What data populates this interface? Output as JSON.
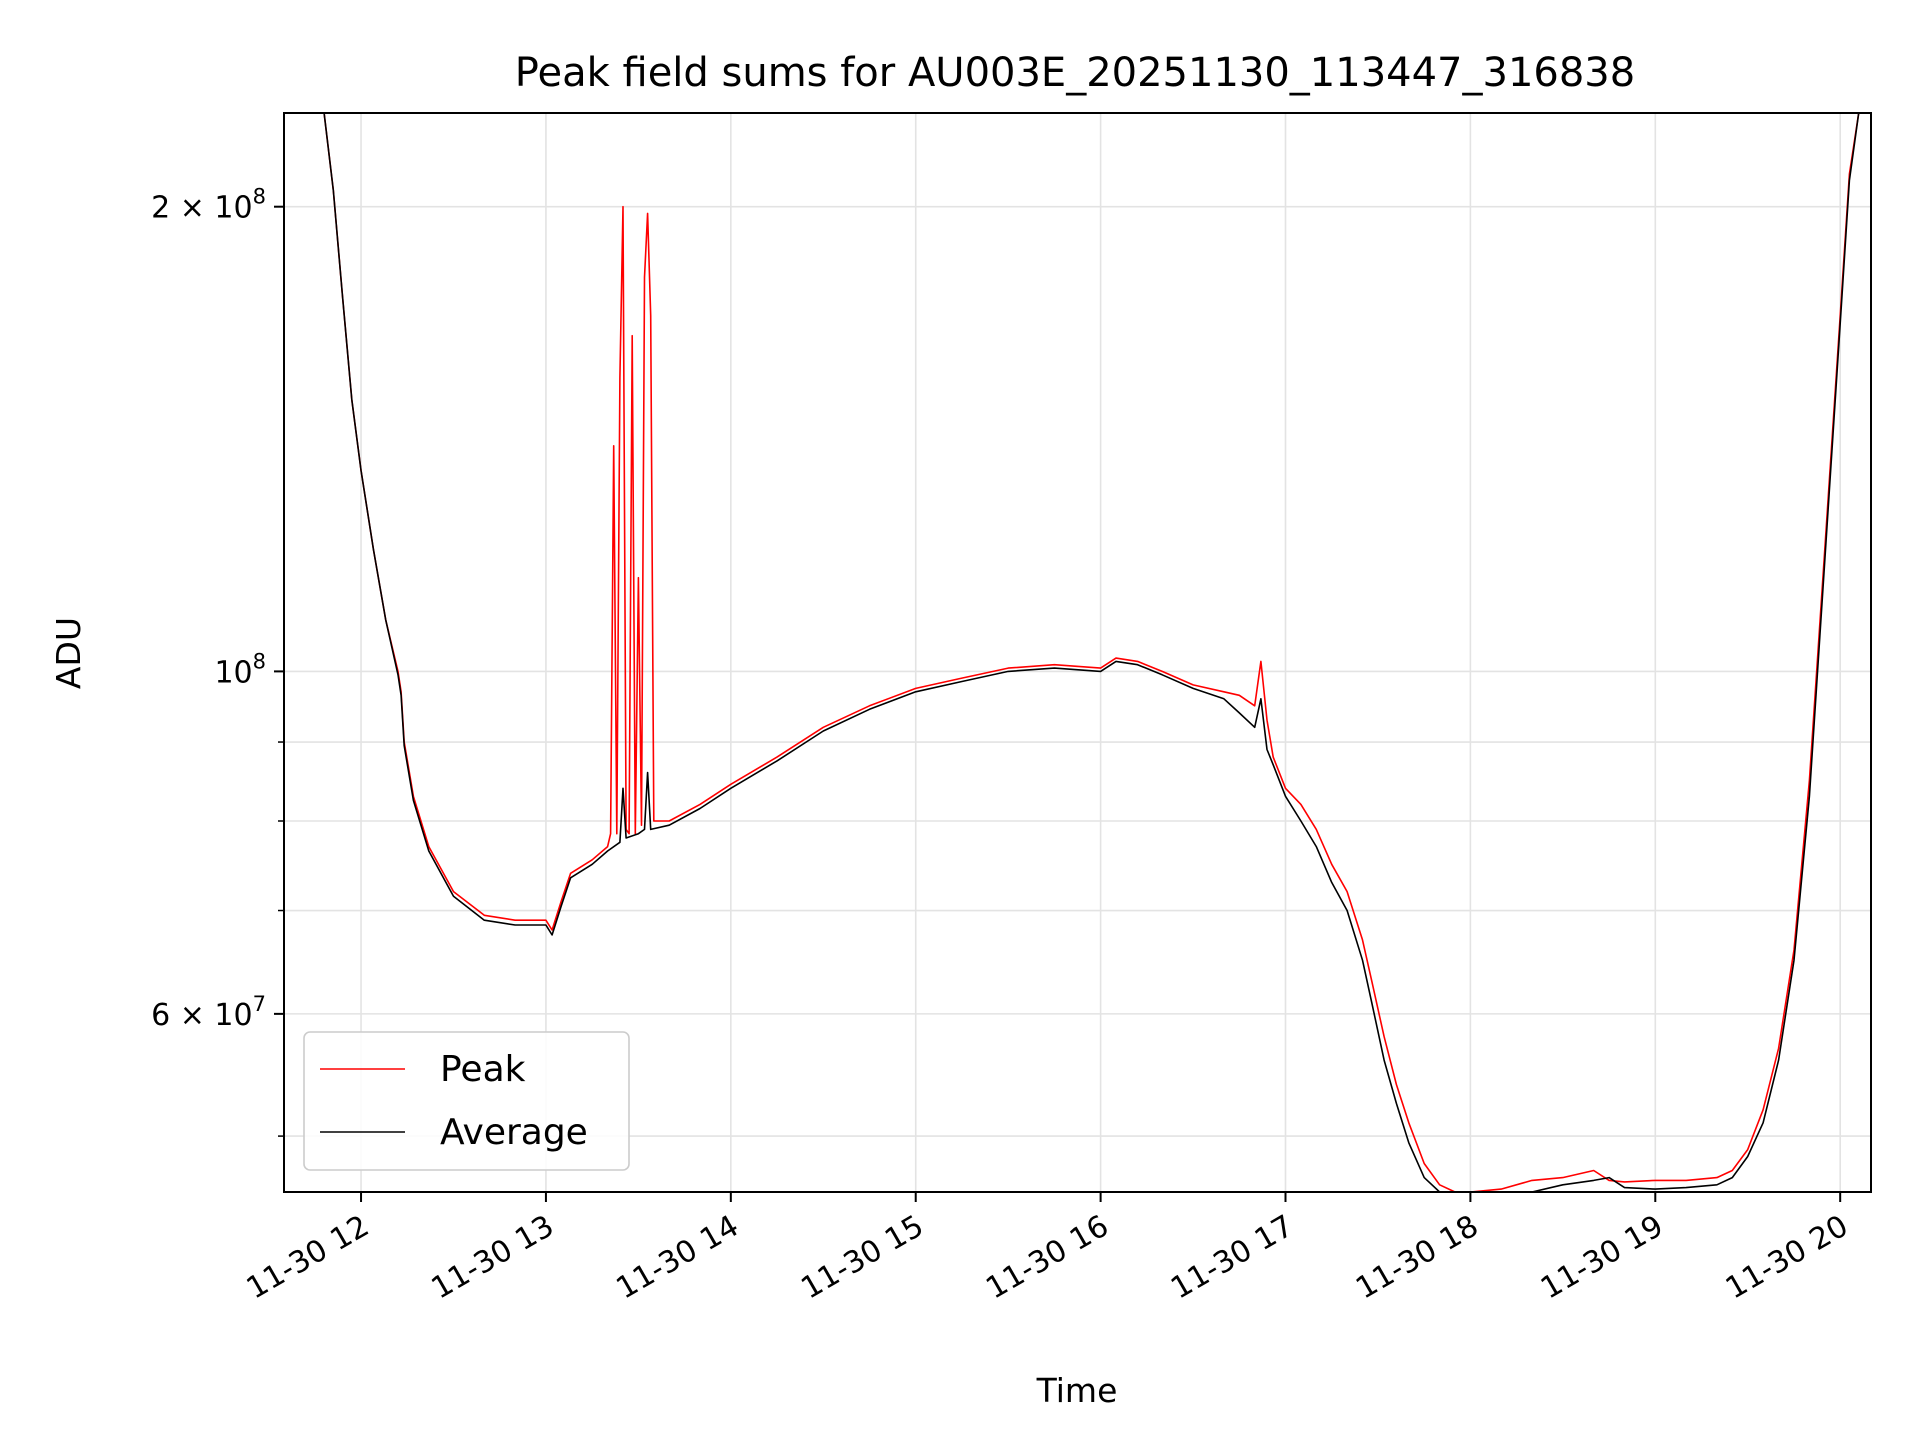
{
  "chart_data": {
    "type": "line",
    "title": "Peak field sums for AU003E_20251130_113447_316838",
    "xlabel": "Time",
    "ylabel": "ADU",
    "y_scale": "log",
    "grid": true,
    "legend_position": "lower-left",
    "x_range": [
      "2025-11-30 11:35",
      "2025-11-30 20:10"
    ],
    "y_range": [
      46000000,
      230000000
    ],
    "x_ticks": [
      {
        "t": "2025-11-30 12:00",
        "label": "11-30 12"
      },
      {
        "t": "2025-11-30 13:00",
        "label": "11-30 13"
      },
      {
        "t": "2025-11-30 14:00",
        "label": "11-30 14"
      },
      {
        "t": "2025-11-30 15:00",
        "label": "11-30 15"
      },
      {
        "t": "2025-11-30 16:00",
        "label": "11-30 16"
      },
      {
        "t": "2025-11-30 17:00",
        "label": "11-30 17"
      },
      {
        "t": "2025-11-30 18:00",
        "label": "11-30 18"
      },
      {
        "t": "2025-11-30 19:00",
        "label": "11-30 19"
      },
      {
        "t": "2025-11-30 20:00",
        "label": "11-30 20"
      }
    ],
    "y_major_ticks": [
      {
        "value": 60000000,
        "mant": "6",
        "exp": "7"
      },
      {
        "value": 100000000,
        "mant": "",
        "exp": "8"
      },
      {
        "value": 200000000,
        "mant": "2",
        "exp": "8"
      }
    ],
    "y_minor_gridlines": [
      50000000,
      70000000,
      80000000,
      90000000
    ],
    "series": [
      {
        "name": "Peak",
        "color": "#ff0000",
        "x": [
          "2025-11-30 11:42",
          "2025-11-30 11:48",
          "2025-11-30 11:51",
          "2025-11-30 11:54",
          "2025-11-30 11:57",
          "2025-11-30 12:00",
          "2025-11-30 12:04",
          "2025-11-30 12:08",
          "2025-11-30 12:12",
          "2025-11-30 12:13",
          "2025-11-30 12:14",
          "2025-11-30 12:17",
          "2025-11-30 12:22",
          "2025-11-30 12:30",
          "2025-11-30 12:40",
          "2025-11-30 12:50",
          "2025-11-30 13:00",
          "2025-11-30 13:02",
          "2025-11-30 13:05",
          "2025-11-30 13:08",
          "2025-11-30 13:15",
          "2025-11-30 13:20",
          "2025-11-30 13:21",
          "2025-11-30 13:22",
          "2025-11-30 13:23",
          "2025-11-30 13:24",
          "2025-11-30 13:25",
          "2025-11-30 13:26",
          "2025-11-30 13:27",
          "2025-11-30 13:28",
          "2025-11-30 13:29",
          "2025-11-30 13:30",
          "2025-11-30 13:31",
          "2025-11-30 13:32",
          "2025-11-30 13:33",
          "2025-11-30 13:34",
          "2025-11-30 13:35",
          "2025-11-30 13:40",
          "2025-11-30 13:50",
          "2025-11-30 14:00",
          "2025-11-30 14:15",
          "2025-11-30 14:30",
          "2025-11-30 14:45",
          "2025-11-30 15:00",
          "2025-11-30 15:15",
          "2025-11-30 15:30",
          "2025-11-30 15:45",
          "2025-11-30 16:00",
          "2025-11-30 16:05",
          "2025-11-30 16:12",
          "2025-11-30 16:20",
          "2025-11-30 16:30",
          "2025-11-30 16:40",
          "2025-11-30 16:45",
          "2025-11-30 16:50",
          "2025-11-30 16:52",
          "2025-11-30 16:54",
          "2025-11-30 16:56",
          "2025-11-30 17:00",
          "2025-11-30 17:05",
          "2025-11-30 17:10",
          "2025-11-30 17:15",
          "2025-11-30 17:20",
          "2025-11-30 17:25",
          "2025-11-30 17:28",
          "2025-11-30 17:32",
          "2025-11-30 17:36",
          "2025-11-30 17:40",
          "2025-11-30 17:45",
          "2025-11-30 17:50",
          "2025-11-30 17:55",
          "2025-11-30 18:00",
          "2025-11-30 18:10",
          "2025-11-30 18:20",
          "2025-11-30 18:30",
          "2025-11-30 18:40",
          "2025-11-30 18:45",
          "2025-11-30 18:50",
          "2025-11-30 19:00",
          "2025-11-30 19:10",
          "2025-11-30 19:20",
          "2025-11-30 19:25",
          "2025-11-30 19:30",
          "2025-11-30 19:35",
          "2025-11-30 19:40",
          "2025-11-30 19:45",
          "2025-11-30 19:50",
          "2025-11-30 19:55",
          "2025-11-30 20:00",
          "2025-11-30 20:03",
          "2025-11-30 20:06",
          "2025-11-30 20:10"
        ],
        "y": [
          230000000,
          230000000,
          205000000,
          175000000,
          150000000,
          135000000,
          120000000,
          108000000,
          100000000,
          97000000,
          90000000,
          83000000,
          77000000,
          72000000,
          69500000,
          69000000,
          69000000,
          68000000,
          71000000,
          74000000,
          75500000,
          77000000,
          78500000,
          140000000,
          78500000,
          155000000,
          200000000,
          79000000,
          78500000,
          165000000,
          78500000,
          115000000,
          79500000,
          180000000,
          198000000,
          170000000,
          80000000,
          80000000,
          82000000,
          84500000,
          88000000,
          92000000,
          95000000,
          97500000,
          99000000,
          100500000,
          101000000,
          100500000,
          102000000,
          101500000,
          100000000,
          98000000,
          97000000,
          96500000,
          95000000,
          101500000,
          93000000,
          88000000,
          84000000,
          82000000,
          79000000,
          75000000,
          72000000,
          67000000,
          63000000,
          58000000,
          54000000,
          51000000,
          48000000,
          46500000,
          46000000,
          46000000,
          46200000,
          46800000,
          47000000,
          47500000,
          46800000,
          46700000,
          46800000,
          46800000,
          47000000,
          47500000,
          49000000,
          52000000,
          57000000,
          66000000,
          85000000,
          120000000,
          170000000,
          210000000,
          230000000,
          230000000
        ]
      },
      {
        "name": "Average",
        "color": "#000000",
        "x": [
          "2025-11-30 11:42",
          "2025-11-30 11:48",
          "2025-11-30 11:51",
          "2025-11-30 11:54",
          "2025-11-30 11:57",
          "2025-11-30 12:00",
          "2025-11-30 12:04",
          "2025-11-30 12:08",
          "2025-11-30 12:12",
          "2025-11-30 12:13",
          "2025-11-30 12:14",
          "2025-11-30 12:17",
          "2025-11-30 12:22",
          "2025-11-30 12:30",
          "2025-11-30 12:40",
          "2025-11-30 12:50",
          "2025-11-30 13:00",
          "2025-11-30 13:02",
          "2025-11-30 13:05",
          "2025-11-30 13:08",
          "2025-11-30 13:15",
          "2025-11-30 13:20",
          "2025-11-30 13:24",
          "2025-11-30 13:25",
          "2025-11-30 13:26",
          "2025-11-30 13:30",
          "2025-11-30 13:32",
          "2025-11-30 13:33",
          "2025-11-30 13:34",
          "2025-11-30 13:40",
          "2025-11-30 13:50",
          "2025-11-30 14:00",
          "2025-11-30 14:15",
          "2025-11-30 14:30",
          "2025-11-30 14:45",
          "2025-11-30 15:00",
          "2025-11-30 15:15",
          "2025-11-30 15:30",
          "2025-11-30 15:45",
          "2025-11-30 16:00",
          "2025-11-30 16:05",
          "2025-11-30 16:12",
          "2025-11-30 16:20",
          "2025-11-30 16:30",
          "2025-11-30 16:40",
          "2025-11-30 16:45",
          "2025-11-30 16:50",
          "2025-11-30 16:52",
          "2025-11-30 16:54",
          "2025-11-30 16:56",
          "2025-11-30 17:00",
          "2025-11-30 17:05",
          "2025-11-30 17:10",
          "2025-11-30 17:15",
          "2025-11-30 17:20",
          "2025-11-30 17:25",
          "2025-11-30 17:28",
          "2025-11-30 17:32",
          "2025-11-30 17:36",
          "2025-11-30 17:40",
          "2025-11-30 17:45",
          "2025-11-30 17:50",
          "2025-11-30 17:55",
          "2025-11-30 18:00",
          "2025-11-30 18:10",
          "2025-11-30 18:20",
          "2025-11-30 18:30",
          "2025-11-30 18:40",
          "2025-11-30 18:45",
          "2025-11-30 18:50",
          "2025-11-30 19:00",
          "2025-11-30 19:10",
          "2025-11-30 19:20",
          "2025-11-30 19:25",
          "2025-11-30 19:30",
          "2025-11-30 19:35",
          "2025-11-30 19:40",
          "2025-11-30 19:45",
          "2025-11-30 19:50",
          "2025-11-30 19:55",
          "2025-11-30 20:00",
          "2025-11-30 20:03",
          "2025-11-30 20:06",
          "2025-11-30 20:10"
        ],
        "y": [
          230000000,
          230000000,
          205000000,
          175000000,
          150000000,
          135000000,
          120000000,
          108000000,
          99500000,
          96500000,
          89500000,
          82500000,
          76500000,
          71500000,
          69000000,
          68500000,
          68500000,
          67500000,
          70500000,
          73500000,
          75000000,
          76500000,
          77500000,
          84000000,
          78000000,
          78500000,
          79000000,
          86000000,
          79000000,
          79500000,
          81500000,
          84000000,
          87500000,
          91500000,
          94500000,
          97000000,
          98500000,
          100000000,
          100500000,
          100000000,
          101500000,
          101000000,
          99500000,
          97500000,
          96000000,
          94000000,
          92000000,
          96000000,
          89000000,
          87000000,
          83000000,
          80000000,
          77000000,
          73000000,
          70000000,
          65000000,
          61000000,
          56000000,
          52500000,
          49500000,
          47000000,
          46000000,
          45800000,
          45800000,
          45800000,
          46000000,
          46500000,
          46800000,
          47000000,
          46300000,
          46200000,
          46300000,
          46500000,
          47000000,
          48500000,
          51000000,
          56000000,
          65000000,
          83000000,
          118000000,
          168000000,
          208000000,
          230000000,
          230000000
        ]
      }
    ]
  }
}
